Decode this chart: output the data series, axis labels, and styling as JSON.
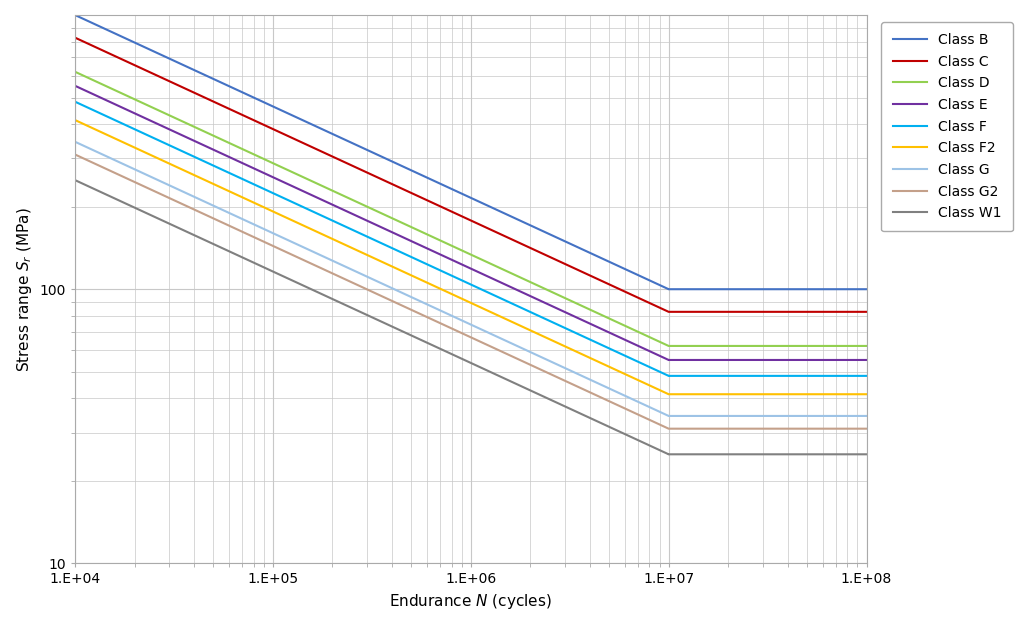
{
  "classes": [
    {
      "name": "Class B",
      "color": "#4472C4",
      "endurance_N": 10000000.0,
      "endurance_S": 100.0,
      "slope": 3
    },
    {
      "name": "Class C",
      "color": "#C00000",
      "endurance_N": 10000000.0,
      "endurance_S": 82.7,
      "slope": 3
    },
    {
      "name": "Class D",
      "color": "#92D050",
      "endurance_N": 10000000.0,
      "endurance_S": 62.1,
      "slope": 3
    },
    {
      "name": "Class E",
      "color": "#7030A0",
      "endurance_N": 10000000.0,
      "endurance_S": 55.2,
      "slope": 3
    },
    {
      "name": "Class F",
      "color": "#00B0F0",
      "endurance_N": 10000000.0,
      "endurance_S": 48.3,
      "slope": 3
    },
    {
      "name": "Class F2",
      "color": "#FFC000",
      "endurance_N": 10000000.0,
      "endurance_S": 41.4,
      "slope": 3
    },
    {
      "name": "Class G",
      "color": "#9DC3E6",
      "endurance_N": 10000000.0,
      "endurance_S": 34.5,
      "slope": 3
    },
    {
      "name": "Class G2",
      "color": "#C4A08A",
      "endurance_N": 10000000.0,
      "endurance_S": 31.0,
      "slope": 3
    },
    {
      "name": "Class W1",
      "color": "#808080",
      "endurance_N": 10000000.0,
      "endurance_S": 25.0,
      "slope": 3
    }
  ],
  "xlim": [
    10000.0,
    100000000.0
  ],
  "ylim": [
    10,
    1000
  ],
  "background_color": "#ffffff",
  "grid_color": "#c8c8c8",
  "xtick_labels": [
    "1.E+04",
    "1.E+05",
    "1.E+06",
    "1.E+07",
    "1.E+08"
  ],
  "xtick_values": [
    10000.0,
    100000.0,
    1000000.0,
    10000000.0,
    100000000.0
  ],
  "ytick_labels": [
    "10",
    "100"
  ],
  "ytick_values": [
    10,
    100
  ],
  "figsize": [
    10.28,
    6.26
  ],
  "dpi": 100
}
